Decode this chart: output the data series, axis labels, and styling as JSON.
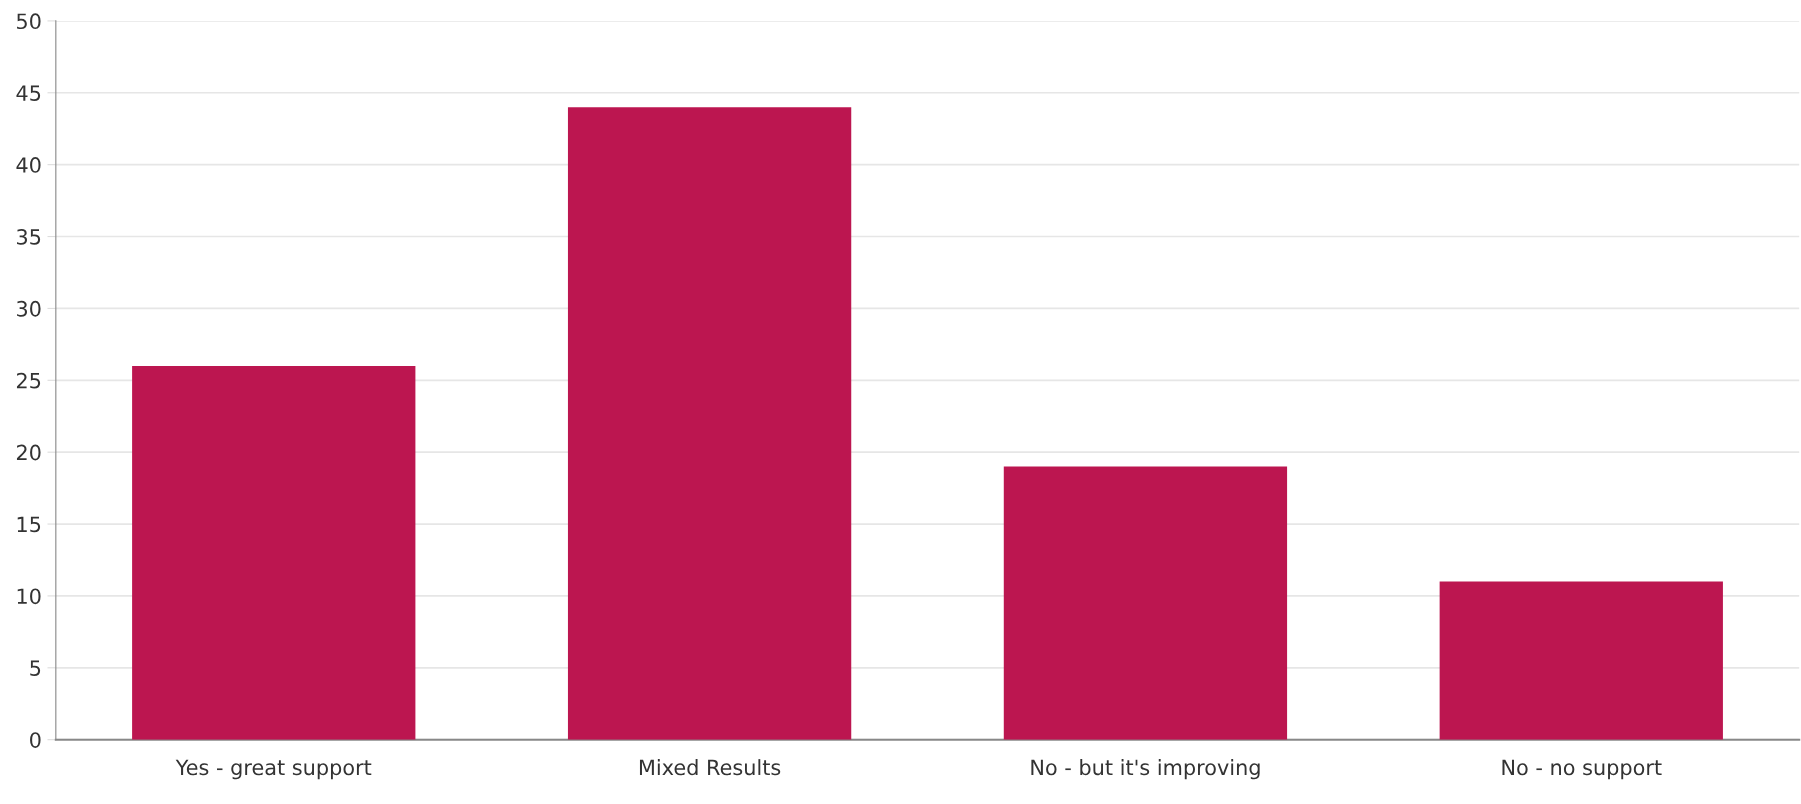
{
  "chart_data": {
    "type": "bar",
    "categories": [
      "Yes - great support",
      "Mixed Results",
      "No - but it's improving",
      "No - no support"
    ],
    "values": [
      26,
      44,
      19,
      11
    ],
    "color": "#bc1650",
    "ylim": [
      0,
      50
    ],
    "yticks": [
      0,
      5,
      10,
      15,
      20,
      25,
      30,
      35,
      40,
      45,
      50
    ],
    "grid": "y",
    "legend": false
  }
}
